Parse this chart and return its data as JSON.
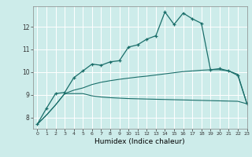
{
  "xlabel": "Humidex (Indice chaleur)",
  "bg_color": "#cdecea",
  "grid_color": "#ffffff",
  "line_color": "#1a6e6a",
  "xlim": [
    -0.5,
    23
  ],
  "ylim": [
    7.5,
    12.9
  ],
  "xticks": [
    0,
    1,
    2,
    3,
    4,
    5,
    6,
    7,
    8,
    9,
    10,
    11,
    12,
    13,
    14,
    15,
    16,
    17,
    18,
    19,
    20,
    21,
    22,
    23
  ],
  "yticks": [
    8,
    9,
    10,
    11,
    12
  ],
  "line1_x": [
    0,
    1,
    2,
    3,
    4,
    5,
    6,
    7,
    8,
    9,
    10,
    11,
    12,
    13,
    14,
    15,
    16,
    17,
    18,
    19,
    20,
    21,
    22,
    23
  ],
  "line1_y": [
    7.7,
    8.4,
    9.05,
    9.1,
    9.75,
    10.05,
    10.35,
    10.3,
    10.45,
    10.5,
    11.1,
    11.2,
    11.45,
    11.6,
    12.65,
    12.1,
    12.6,
    12.35,
    12.15,
    10.1,
    10.15,
    10.05,
    9.85,
    8.6
  ],
  "line2_x": [
    0,
    1,
    2,
    3,
    4,
    5,
    6,
    7,
    8,
    9,
    10,
    11,
    12,
    13,
    14,
    15,
    16,
    17,
    18,
    19,
    20,
    21,
    22,
    23
  ],
  "line2_y": [
    7.7,
    8.1,
    8.55,
    9.05,
    9.2,
    9.3,
    9.45,
    9.55,
    9.62,
    9.68,
    9.73,
    9.78,
    9.82,
    9.87,
    9.92,
    9.97,
    10.02,
    10.05,
    10.08,
    10.1,
    10.1,
    10.05,
    9.9,
    8.6
  ],
  "line3_x": [
    0,
    1,
    2,
    3,
    4,
    5,
    6,
    7,
    8,
    9,
    10,
    11,
    12,
    13,
    14,
    15,
    16,
    17,
    18,
    19,
    20,
    21,
    22,
    23
  ],
  "line3_y": [
    7.7,
    8.1,
    8.55,
    9.05,
    9.05,
    9.05,
    8.95,
    8.9,
    8.87,
    8.85,
    8.83,
    8.82,
    8.81,
    8.8,
    8.79,
    8.78,
    8.77,
    8.76,
    8.75,
    8.74,
    8.73,
    8.72,
    8.71,
    8.6
  ]
}
